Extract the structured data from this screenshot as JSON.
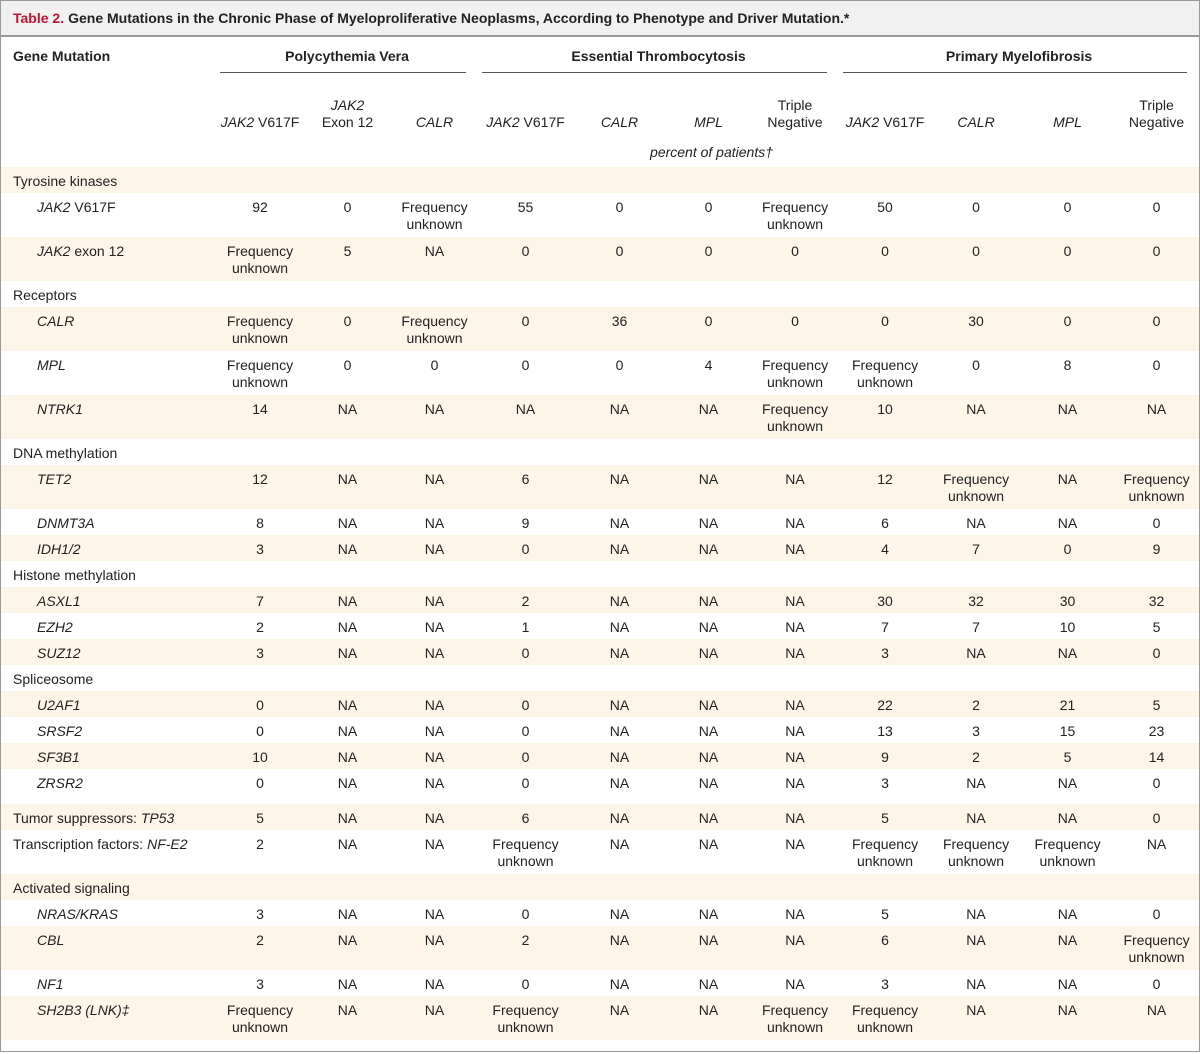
{
  "title": {
    "label": "Table 2.",
    "text": "Gene Mutations in the Chronic Phase of Myeloproliferative Neoplasms, According to Phenotype and Driver Mutation.*"
  },
  "header": {
    "first_column": "Gene Mutation",
    "groups": [
      {
        "label": "Polycythemia Vera",
        "span": 3
      },
      {
        "label": "Essential Thrombocytosis",
        "span": 4
      },
      {
        "label": "Primary Myelofibrosis",
        "span": 4
      }
    ],
    "subcolumns": [
      {
        "italic": "JAK2",
        "text": " V617F"
      },
      {
        "italic": "JAK2",
        "text": "Exon 12",
        "break": true
      },
      {
        "italic": "CALR",
        "text": ""
      },
      {
        "italic": "JAK2",
        "text": " V617F"
      },
      {
        "italic": "CALR",
        "text": ""
      },
      {
        "italic": "MPL",
        "text": ""
      },
      {
        "italic": "",
        "text": "Triple Negative",
        "break": true
      },
      {
        "italic": "JAK2",
        "text": " V617F"
      },
      {
        "italic": "CALR",
        "text": ""
      },
      {
        "italic": "MPL",
        "text": ""
      },
      {
        "italic": "",
        "text": "Triple Negative",
        "break": true
      }
    ],
    "units": "percent of patients†"
  },
  "colors": {
    "title_label": "#c4122f",
    "row_shade": "#fdf6e8",
    "title_bar": "#f1f1f1"
  },
  "rows": [
    {
      "group": "Tyrosine kinases"
    },
    {
      "gene": "JAK2",
      "suffix": " V617F",
      "values": [
        "92",
        "0",
        "Frequency unknown",
        "55",
        "0",
        "0",
        "Frequency unknown",
        "50",
        "0",
        "0",
        "0"
      ]
    },
    {
      "gene": "JAK2",
      "suffix": " exon 12",
      "values": [
        "Frequency unknown",
        "5",
        "NA",
        "0",
        "0",
        "0",
        "0",
        "0",
        "0",
        "0",
        "0"
      ]
    },
    {
      "group": "Receptors"
    },
    {
      "gene": "CALR",
      "values": [
        "Frequency unknown",
        "0",
        "Frequency unknown",
        "0",
        "36",
        "0",
        "0",
        "0",
        "30",
        "0",
        "0"
      ]
    },
    {
      "gene": "MPL",
      "values": [
        "Frequency unknown",
        "0",
        "0",
        "0",
        "0",
        "4",
        "Frequency unknown",
        "Frequency unknown",
        "0",
        "8",
        "0"
      ]
    },
    {
      "gene": "NTRK1",
      "values": [
        "14",
        "NA",
        "NA",
        "NA",
        "NA",
        "NA",
        "Frequency unknown",
        "10",
        "NA",
        "NA",
        "NA"
      ]
    },
    {
      "group": "DNA methylation"
    },
    {
      "gene": "TET2",
      "values": [
        "12",
        "NA",
        "NA",
        "6",
        "NA",
        "NA",
        "NA",
        "12",
        "Frequency unknown",
        "NA",
        "Frequency unknown"
      ]
    },
    {
      "gene": "DNMT3A",
      "values": [
        "8",
        "NA",
        "NA",
        "9",
        "NA",
        "NA",
        "NA",
        "6",
        "NA",
        "NA",
        "0"
      ]
    },
    {
      "gene": "IDH1/2",
      "values": [
        "3",
        "NA",
        "NA",
        "0",
        "NA",
        "NA",
        "NA",
        "4",
        "7",
        "0",
        "9"
      ]
    },
    {
      "group": "Histone methylation"
    },
    {
      "gene": "ASXL1",
      "values": [
        "7",
        "NA",
        "NA",
        "2",
        "NA",
        "NA",
        "NA",
        "30",
        "32",
        "30",
        "32"
      ]
    },
    {
      "gene": "EZH2",
      "values": [
        "2",
        "NA",
        "NA",
        "1",
        "NA",
        "NA",
        "NA",
        "7",
        "7",
        "10",
        "5"
      ]
    },
    {
      "gene": "SUZ12",
      "values": [
        "3",
        "NA",
        "NA",
        "0",
        "NA",
        "NA",
        "NA",
        "3",
        "NA",
        "NA",
        "0"
      ]
    },
    {
      "group": "Spliceosome"
    },
    {
      "gene": "U2AF1",
      "values": [
        "0",
        "NA",
        "NA",
        "0",
        "NA",
        "NA",
        "NA",
        "22",
        "2",
        "21",
        "5"
      ]
    },
    {
      "gene": "SRSF2",
      "values": [
        "0",
        "NA",
        "NA",
        "0",
        "NA",
        "NA",
        "NA",
        "13",
        "3",
        "15",
        "23"
      ]
    },
    {
      "gene": "SF3B1",
      "values": [
        "10",
        "NA",
        "NA",
        "0",
        "NA",
        "NA",
        "NA",
        "9",
        "2",
        "5",
        "14"
      ]
    },
    {
      "gene": "ZRSR2",
      "values": [
        "0",
        "NA",
        "NA",
        "0",
        "NA",
        "NA",
        "NA",
        "3",
        "NA",
        "NA",
        "0"
      ]
    },
    {
      "gap": true
    },
    {
      "prefix": "Tumor suppressors: ",
      "gene": "TP53",
      "top": true,
      "values": [
        "5",
        "NA",
        "NA",
        "6",
        "NA",
        "NA",
        "NA",
        "5",
        "NA",
        "NA",
        "0"
      ]
    },
    {
      "prefix": "Transcription factors: ",
      "gene": "NF-E2",
      "top": true,
      "values": [
        "2",
        "NA",
        "NA",
        "Frequency unknown",
        "NA",
        "NA",
        "NA",
        "Frequency unknown",
        "Frequency unknown",
        "Frequency unknown",
        "NA"
      ]
    },
    {
      "group": "Activated signaling"
    },
    {
      "gene": "NRAS/KRAS",
      "values": [
        "3",
        "NA",
        "NA",
        "0",
        "NA",
        "NA",
        "NA",
        "5",
        "NA",
        "NA",
        "0"
      ]
    },
    {
      "gene": "CBL",
      "values": [
        "2",
        "NA",
        "NA",
        "2",
        "NA",
        "NA",
        "NA",
        "6",
        "NA",
        "NA",
        "Frequency unknown"
      ]
    },
    {
      "gene": "NF1",
      "values": [
        "3",
        "NA",
        "NA",
        "0",
        "NA",
        "NA",
        "NA",
        "3",
        "NA",
        "NA",
        "0"
      ]
    },
    {
      "gene": "SH2B3",
      "suffix": " (LNK)‡",
      "suffix_italic": true,
      "values": [
        "Frequency unknown",
        "NA",
        "NA",
        "Frequency unknown",
        "NA",
        "NA",
        "Frequency unknown",
        "Frequency unknown",
        "NA",
        "NA",
        "NA"
      ]
    }
  ]
}
